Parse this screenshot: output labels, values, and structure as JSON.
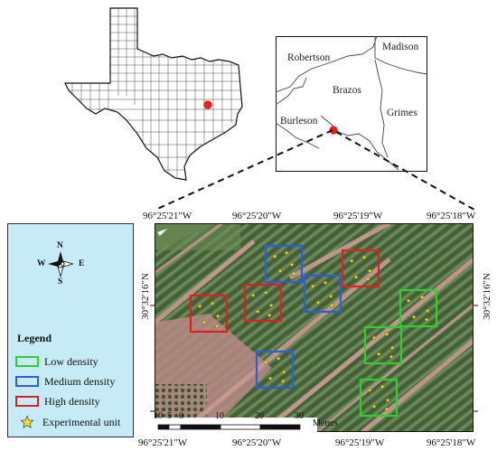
{
  "inset_counties": {
    "robertson": "Robertson",
    "madison": "Madison",
    "brazos": "Brazos",
    "burleson": "Burleson",
    "grimes": "Grimes"
  },
  "coords": {
    "top": [
      "96°25'21\"W",
      "96°25'20\"W",
      "96°25'19\"W",
      "96°25'18\"W"
    ],
    "bottom": [
      "96°25'21\"W",
      "96°25'20\"W",
      "96°25'19\"W",
      "96°25'18\"W"
    ],
    "left": "30°32'16\"N",
    "right": "30°32'16\"N"
  },
  "compass": {
    "north": "N",
    "south": "S",
    "east": "E",
    "west": "W"
  },
  "legend": {
    "title": "Legend",
    "items": [
      {
        "label": "Low density",
        "color": "#2fcf2f"
      },
      {
        "label": "Medium density",
        "color": "#2a5fd8"
      },
      {
        "label": "High density",
        "color": "#e02020"
      },
      {
        "label": "Experimental unit",
        "color": "#f3e22a",
        "icon": "star-icon"
      }
    ]
  },
  "scalebar": {
    "ticks": [
      "10",
      "5",
      "0",
      "10",
      "20",
      "30"
    ],
    "unit": "Meters"
  },
  "colors": {
    "location_dot": "#e8201e",
    "legend_bg": "#c6ebf7",
    "star": "#f3e22a"
  }
}
